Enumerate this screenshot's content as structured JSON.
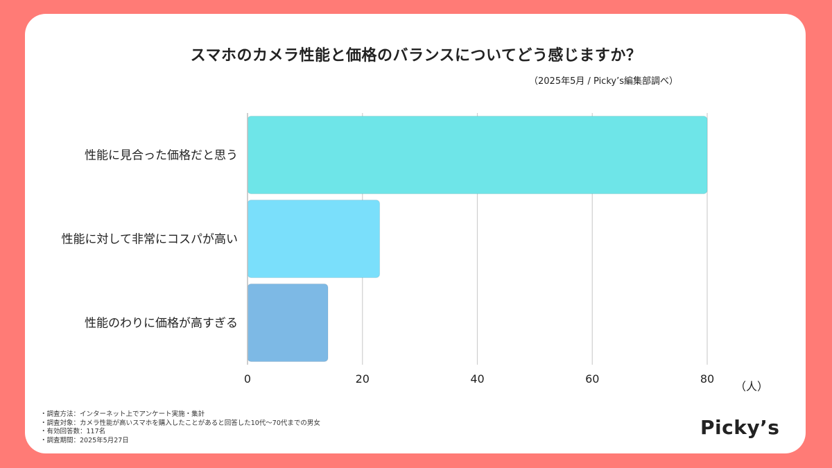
{
  "chart_data": {
    "type": "bar",
    "orientation": "horizontal",
    "title": "スマホのカメラ性能と価格のバランスについてどう感じますか？",
    "subtitle": "（2025年5月 / Picky’s編集部調べ）",
    "categories": [
      "性能に見合った価格だと思う",
      "性能に対して非常にコスパが高い",
      "性能のわりに価格が高すぎる"
    ],
    "values": [
      80,
      23,
      14
    ],
    "colors": [
      "#6EE5E8",
      "#7ADFFB",
      "#7DB9E5"
    ],
    "xlim": [
      0,
      80
    ],
    "xticks": [
      "0",
      "20",
      "40",
      "60",
      "80"
    ],
    "xticks_values": [
      0,
      20,
      40,
      60,
      80
    ],
    "unit": "（人）",
    "grid": true
  },
  "notes": [
    "・調査方法：インターネット上でアンケート実施・集計",
    "・調査対象：カメラ性能が高いスマホを購入したことがあると回答した10代〜70代までの男女",
    "・有効回答数：117名",
    "・調査期間：2025年5月27日"
  ],
  "brand": "Picky’s"
}
